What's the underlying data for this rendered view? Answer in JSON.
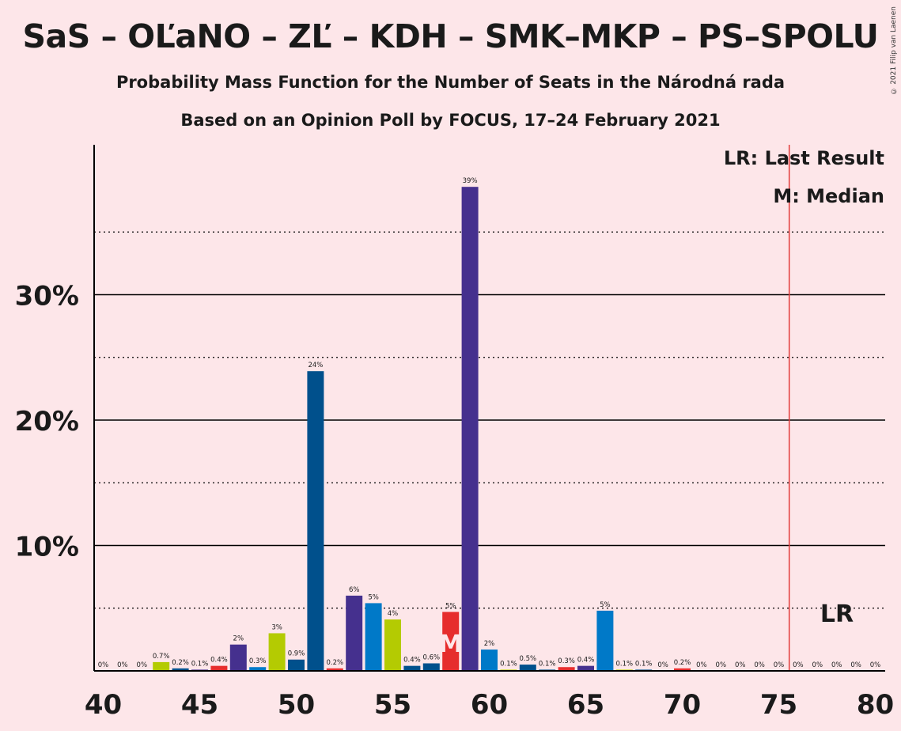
{
  "title": "SaS – OĽaNO – ZĽ – KDH – SMK–MKP – PS–SPOLU",
  "subtitle": "Probability Mass Function for the Number of Seats in the Národná rada",
  "subtitle2": "Based on an Opinion Poll by FOCUS, 17–24 February 2021",
  "copyright": "© 2021 Filip van Laenen",
  "legend": {
    "lr": "LR: Last Result",
    "median": "M: Median"
  },
  "markers": {
    "last_result_label": "LR",
    "median_label": "M"
  },
  "colors": {
    "background": "#FDE6E9",
    "sas": "#B4CB02",
    "olano": "#00508C",
    "zl": "#45308E",
    "kdh": "#E62D2D",
    "smk": "#0079C8",
    "ps": "#45308E",
    "last_result_line": "#E23A3A"
  },
  "chart_data": {
    "type": "bar",
    "xlabel": "",
    "ylabel": "",
    "xlim": [
      40,
      80
    ],
    "ylim": [
      0,
      42
    ],
    "x_ticks": [
      40,
      45,
      50,
      55,
      60,
      65,
      70,
      75,
      80
    ],
    "y_ticks": [
      {
        "value": 10,
        "label": "10%"
      },
      {
        "value": 20,
        "label": "20%"
      },
      {
        "value": 30,
        "label": "30%"
      }
    ],
    "dotted_lines": [
      5,
      15,
      25,
      35
    ],
    "median": 58,
    "last_result": 76,
    "bars": [
      {
        "x": 40,
        "value": 0,
        "label": "0%",
        "color": "#B4CB02"
      },
      {
        "x": 41,
        "value": 0,
        "label": "0%",
        "color": "#00508C"
      },
      {
        "x": 42,
        "value": 0,
        "label": "0%",
        "color": "#45308E"
      },
      {
        "x": 43,
        "value": 0.7,
        "label": "0.7%",
        "color": "#B4CB02"
      },
      {
        "x": 44,
        "value": 0.2,
        "label": "0.2%",
        "color": "#00508C"
      },
      {
        "x": 45,
        "value": 0.1,
        "label": "0.1%",
        "color": "#45308E"
      },
      {
        "x": 46,
        "value": 0.4,
        "label": "0.4%",
        "color": "#E62D2D"
      },
      {
        "x": 47,
        "value": 2.1,
        "label": "2%",
        "color": "#45308E"
      },
      {
        "x": 48,
        "value": 0.3,
        "label": "0.3%",
        "color": "#0079C8"
      },
      {
        "x": 49,
        "value": 3.0,
        "label": "3%",
        "color": "#B4CB02"
      },
      {
        "x": 50,
        "value": 0.9,
        "label": "0.9%",
        "color": "#00508C"
      },
      {
        "x": 51,
        "value": 23.9,
        "label": "24%",
        "color": "#00508C"
      },
      {
        "x": 52,
        "value": 0.2,
        "label": "0.2%",
        "color": "#E62D2D"
      },
      {
        "x": 53,
        "value": 6.0,
        "label": "6%",
        "color": "#45308E"
      },
      {
        "x": 54,
        "value": 5.4,
        "label": "5%",
        "color": "#0079C8"
      },
      {
        "x": 55,
        "value": 4.1,
        "label": "4%",
        "color": "#B4CB02"
      },
      {
        "x": 56,
        "value": 0.4,
        "label": "0.4%",
        "color": "#00508C"
      },
      {
        "x": 57,
        "value": 0.6,
        "label": "0.6%",
        "color": "#00508C"
      },
      {
        "x": 58,
        "value": 4.7,
        "label": "5%",
        "color": "#E62D2D"
      },
      {
        "x": 59,
        "value": 38.6,
        "label": "39%",
        "color": "#45308E"
      },
      {
        "x": 60,
        "value": 1.7,
        "label": "2%",
        "color": "#0079C8"
      },
      {
        "x": 61,
        "value": 0.1,
        "label": "0.1%",
        "color": "#B4CB02"
      },
      {
        "x": 62,
        "value": 0.5,
        "label": "0.5%",
        "color": "#00508C"
      },
      {
        "x": 63,
        "value": 0.1,
        "label": "0.1%",
        "color": "#00508C"
      },
      {
        "x": 64,
        "value": 0.3,
        "label": "0.3%",
        "color": "#E62D2D"
      },
      {
        "x": 65,
        "value": 0.4,
        "label": "0.4%",
        "color": "#45308E"
      },
      {
        "x": 66,
        "value": 4.8,
        "label": "5%",
        "color": "#0079C8"
      },
      {
        "x": 67,
        "value": 0.1,
        "label": "0.1%",
        "color": "#B4CB02"
      },
      {
        "x": 68,
        "value": 0.1,
        "label": "0.1%",
        "color": "#00508C"
      },
      {
        "x": 69,
        "value": 0,
        "label": "0%",
        "color": "#00508C"
      },
      {
        "x": 70,
        "value": 0.2,
        "label": "0.2%",
        "color": "#E62D2D"
      },
      {
        "x": 71,
        "value": 0,
        "label": "0%",
        "color": "#45308E"
      },
      {
        "x": 72,
        "value": 0,
        "label": "0%",
        "color": "#0079C8"
      },
      {
        "x": 73,
        "value": 0,
        "label": "0%",
        "color": "#B4CB02"
      },
      {
        "x": 74,
        "value": 0,
        "label": "0%",
        "color": "#00508C"
      },
      {
        "x": 75,
        "value": 0,
        "label": "0%",
        "color": "#00508C"
      },
      {
        "x": 76,
        "value": 0,
        "label": "0%",
        "color": "#E62D2D"
      },
      {
        "x": 77,
        "value": 0,
        "label": "0%",
        "color": "#45308E"
      },
      {
        "x": 78,
        "value": 0,
        "label": "0%",
        "color": "#0079C8"
      },
      {
        "x": 79,
        "value": 0,
        "label": "0%",
        "color": "#B4CB02"
      },
      {
        "x": 80,
        "value": 0,
        "label": "0%",
        "color": "#00508C"
      }
    ]
  }
}
